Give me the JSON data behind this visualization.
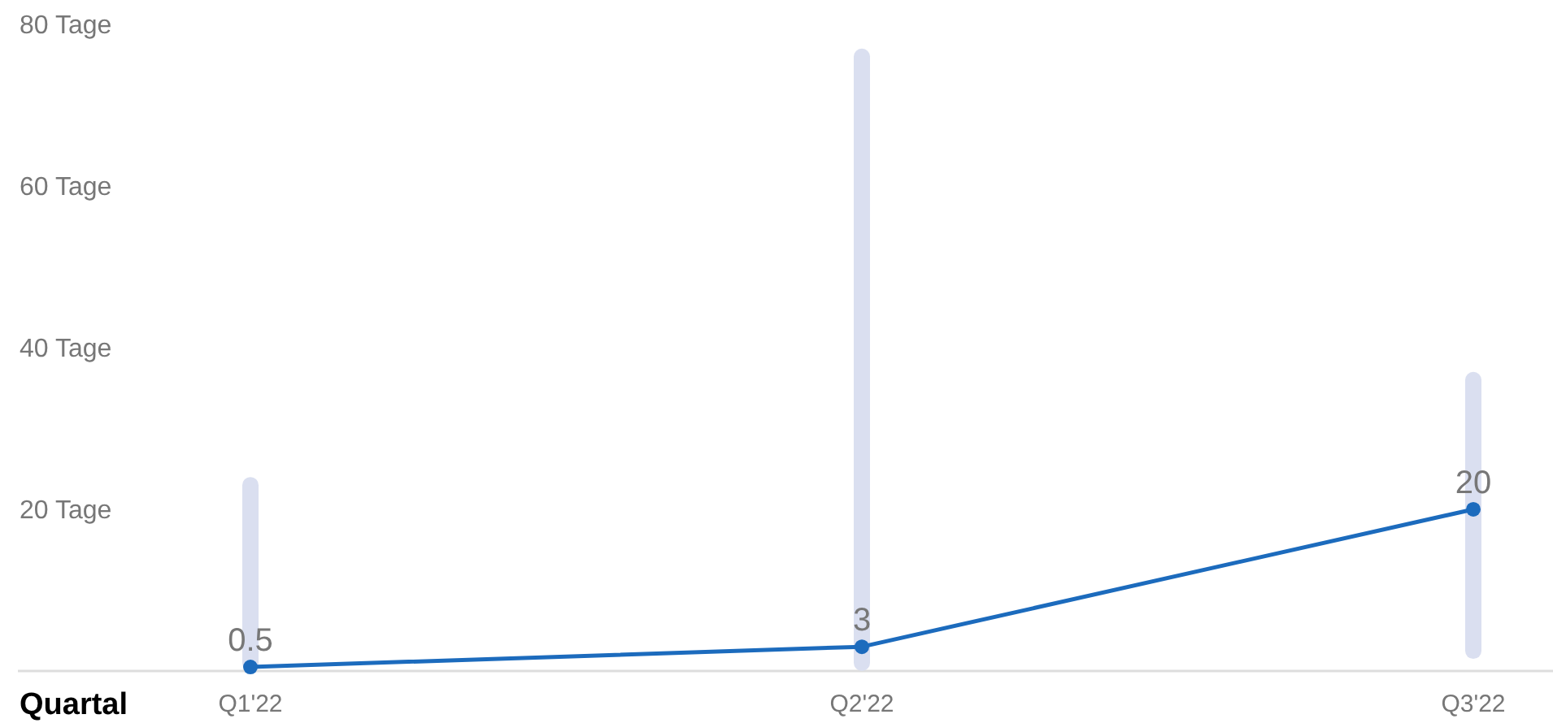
{
  "chart_data": {
    "type": "bar",
    "xlabel": "Quartal",
    "categories": [
      "Q1'22",
      "Q2'22",
      "Q3'22"
    ],
    "series": [
      {
        "color": "#dadff0",
        "values": [
          24,
          77,
          35.5
        ],
        "base": [
          0,
          0,
          1.5
        ]
      },
      {
        "type": "line",
        "color": "#1c6bbd",
        "values": [
          0.5,
          3,
          20
        ],
        "value_labels": [
          "0.5",
          "3",
          "20"
        ]
      }
    ],
    "ylim": [
      0,
      83
    ],
    "yticks": [
      {
        "value": 20,
        "label": "20 Tage"
      },
      {
        "value": 40,
        "label": "40 Tage"
      },
      {
        "value": 60,
        "label": "60 Tage"
      },
      {
        "value": 80,
        "label": "80 Tage"
      }
    ],
    "marker": "circle",
    "grid": false
  }
}
